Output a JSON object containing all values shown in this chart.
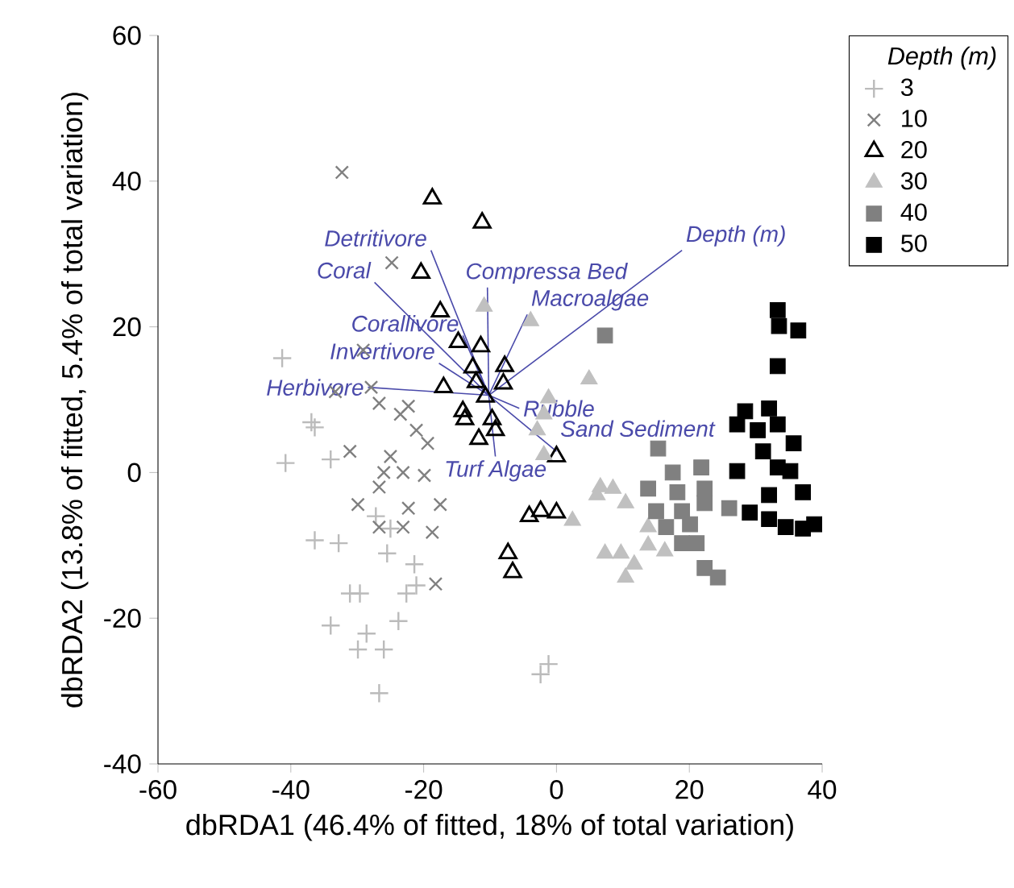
{
  "chart_data": {
    "type": "scatter",
    "xlabel": "dbRDA1 (46.4% of fitted, 18% of total variation)",
    "ylabel": "dbRDA2 (13.8% of fitted, 5.4% of total variation)",
    "legend_title": "Depth (m)",
    "legend": "right",
    "xlim": [
      -60,
      40
    ],
    "ylim": [
      -40,
      60
    ],
    "xticks": [
      -60,
      -40,
      -20,
      0,
      20,
      40
    ],
    "yticks": [
      -40,
      -20,
      0,
      20,
      40,
      60
    ],
    "series": [
      {
        "name": "3",
        "color": "#bbbbbb",
        "marker": "plus",
        "x": [
          -41.3,
          -36.9,
          -36.4,
          -40.8,
          -34.0,
          -36.4,
          -32.8,
          -27.2,
          -25.0,
          -25.5,
          -21.4,
          -21.1,
          -22.6,
          -31.1,
          -29.6,
          -23.8,
          -34.0,
          -28.6,
          -29.9,
          -26.0,
          -26.7,
          -2.4,
          -1.2
        ],
        "values": [
          15.7,
          6.9,
          6.2,
          1.3,
          1.8,
          -9.3,
          -9.7,
          -6.0,
          -7.7,
          -11.1,
          -12.6,
          -15.5,
          -16.6,
          -16.6,
          -16.6,
          -20.4,
          -21.0,
          -22.1,
          -24.3,
          -24.3,
          -30.3,
          -27.7,
          -26.3
        ]
      },
      {
        "name": "10",
        "color": "#808080",
        "marker": "cross",
        "x": [
          -32.3,
          -24.8,
          -29.1,
          -33.3,
          -27.9,
          -26.7,
          -22.3,
          -23.5,
          -21.1,
          -19.4,
          -31.1,
          -25.0,
          -26.0,
          -23.1,
          -19.9,
          -26.7,
          -29.9,
          -22.3,
          -17.5,
          -26.7,
          -23.1,
          -18.7,
          -18.2
        ],
        "values": [
          41.2,
          28.8,
          16.8,
          11.1,
          11.7,
          9.5,
          9.1,
          8.0,
          5.8,
          4.0,
          2.9,
          2.2,
          0,
          0,
          -0.4,
          -2.0,
          -4.4,
          -4.9,
          -4.4,
          -7.5,
          -7.5,
          -8.2,
          -15.3
        ]
      },
      {
        "name": "20",
        "color": "#000000",
        "marker": "triangle-open",
        "x": [
          -18.7,
          -11.2,
          -20.4,
          -17.5,
          -14.8,
          -11.4,
          -12.6,
          -7.8,
          -17.0,
          -12.1,
          -8.0,
          -10.7,
          -14.1,
          -13.8,
          -11.7,
          -9.7,
          -9.2,
          0,
          -4.1,
          -2.4,
          0,
          -7.3,
          -6.6
        ],
        "values": [
          37.6,
          34.3,
          27.4,
          22.1,
          17.9,
          17.3,
          14.4,
          14.6,
          11.7,
          12.4,
          12.2,
          10.4,
          8.4,
          7.3,
          4.6,
          7.3,
          5.8,
          2.2,
          -6.0,
          -5.3,
          -5.5,
          -11.1,
          -13.7
        ]
      },
      {
        "name": "30",
        "color": "#c0c0c0",
        "marker": "triangle",
        "x": [
          -10.9,
          -3.9,
          -1.2,
          4.9,
          -1.9,
          -2.9,
          -1.9,
          6.6,
          8.5,
          6.1,
          10.4,
          2.4,
          13.8,
          7.3,
          9.7,
          11.7,
          10.4,
          13.8,
          16.3
        ],
        "values": [
          22.8,
          20.8,
          10.2,
          12.8,
          8.0,
          5.8,
          2.4,
          -2.0,
          -2.2,
          -3.1,
          -4.2,
          -6.6,
          -7.5,
          -11.1,
          -11.1,
          -12.6,
          -14.4,
          -10.0,
          -10.8
        ]
      },
      {
        "name": "40",
        "color": "#808080",
        "marker": "square",
        "x": [
          7.3,
          15.3,
          17.5,
          21.8,
          13.8,
          18.2,
          22.3,
          15.0,
          18.9,
          22.3,
          26.0,
          16.5,
          20.1,
          18.9,
          21.1,
          22.3,
          24.3
        ],
        "values": [
          18.8,
          3.3,
          0,
          0.7,
          -2.2,
          -2.7,
          -2.2,
          -5.3,
          -5.3,
          -4.2,
          -4.9,
          -7.5,
          -7.1,
          -9.7,
          -9.7,
          -13.1,
          -14.4
        ]
      },
      {
        "name": "50",
        "color": "#000000",
        "marker": "square",
        "x": [
          33.3,
          33.5,
          36.4,
          33.3,
          28.4,
          32.0,
          27.2,
          30.3,
          33.3,
          35.7,
          31.1,
          27.2,
          33.3,
          35.2,
          32.0,
          37.1,
          29.1,
          32.0,
          34.5,
          37.1,
          38.8
        ],
        "values": [
          22.3,
          20.1,
          19.5,
          14.6,
          8.4,
          8.8,
          6.6,
          5.8,
          6.6,
          4.0,
          2.9,
          0.2,
          0.7,
          0.2,
          -3.1,
          -2.7,
          -5.5,
          -6.4,
          -7.5,
          -7.7,
          -7.1
        ]
      },
      {
        "name": "Detritivore",
        "type": "line",
        "color": "#4a4aaa",
        "x": [
          -10.2,
          -18.9
        ],
        "values": [
          10.6,
          30.5
        ]
      },
      {
        "name": "Coral",
        "type": "line",
        "color": "#4a4aaa",
        "x": [
          -10.2,
          -27.4
        ],
        "values": [
          10.6,
          26.1
        ]
      },
      {
        "name": "Corallivore",
        "type": "line",
        "color": "#4a4aaa",
        "x": [
          -10.2,
          -14.1
        ],
        "values": [
          10.6,
          18.8
        ]
      },
      {
        "name": "Invertivore",
        "type": "line",
        "color": "#4a4aaa",
        "x": [
          -10.2,
          -17.7
        ],
        "values": [
          10.6,
          15.0
        ]
      },
      {
        "name": "Herbivore",
        "type": "line",
        "color": "#4a4aaa",
        "x": [
          -10.2,
          -28.4
        ],
        "values": [
          10.6,
          11.7
        ]
      },
      {
        "name": "Compressa Bed",
        "type": "line",
        "color": "#4a4aaa",
        "x": [
          -10.2,
          -10.4
        ],
        "values": [
          10.6,
          25.4
        ]
      },
      {
        "name": "Macroalgae",
        "type": "line",
        "color": "#4a4aaa",
        "x": [
          -10.2,
          -4.4
        ],
        "values": [
          10.6,
          21.7
        ]
      },
      {
        "name": "Depth (m)",
        "type": "line",
        "color": "#4a4aaa",
        "x": [
          -10.2,
          18.9
        ],
        "values": [
          10.6,
          30.5
        ]
      },
      {
        "name": "Rubble",
        "type": "line",
        "color": "#4a4aaa",
        "x": [
          -10.2,
          -5.6
        ],
        "values": [
          10.6,
          8.8
        ]
      },
      {
        "name": "Sand Sediment",
        "type": "line",
        "color": "#4a4aaa",
        "x": [
          -10.2,
          0
        ],
        "values": [
          10.6,
          2.9
        ]
      },
      {
        "name": "Turf Algae",
        "type": "line",
        "color": "#4a4aaa",
        "x": [
          -10.2,
          -9.2
        ],
        "values": [
          10.6,
          2.2
        ]
      }
    ]
  }
}
